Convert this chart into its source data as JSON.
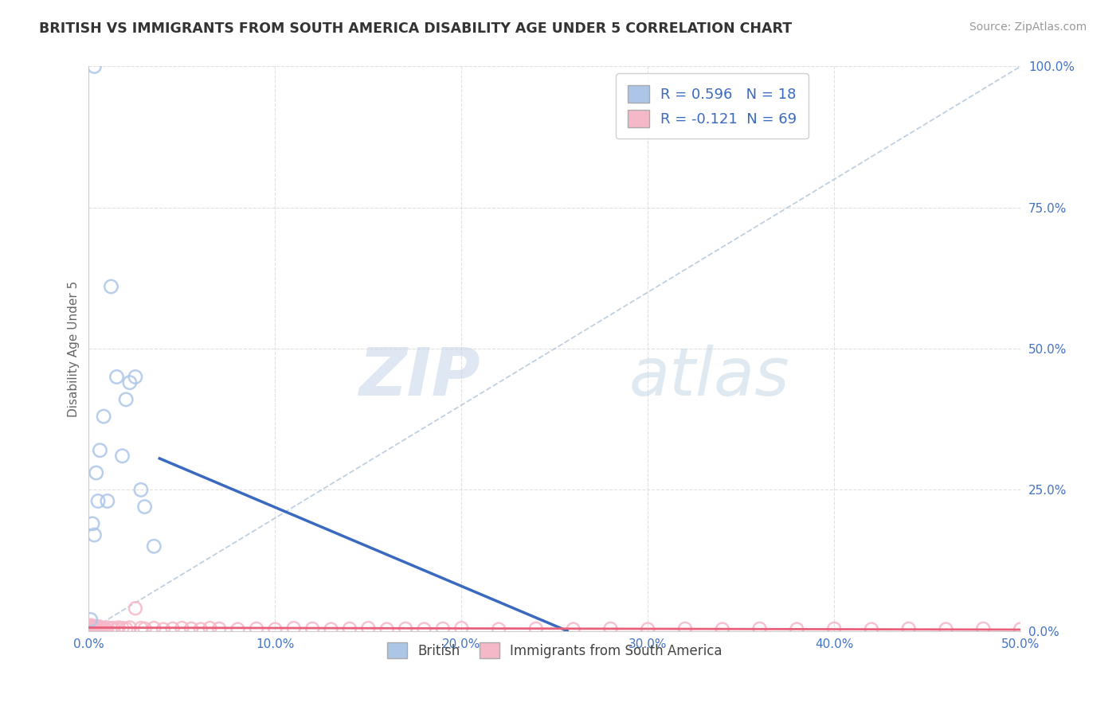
{
  "title": "BRITISH VS IMMIGRANTS FROM SOUTH AMERICA DISABILITY AGE UNDER 5 CORRELATION CHART",
  "source": "Source: ZipAtlas.com",
  "ylabel": "Disability Age Under 5",
  "british_r": 0.596,
  "british_n": 18,
  "sa_r": -0.121,
  "sa_n": 69,
  "british_color": "#adc6e8",
  "sa_color": "#f5b8c8",
  "british_line_color": "#3a6abf",
  "sa_line_color": "#e8607a",
  "identity_line_color": "#b0c4d8",
  "background_color": "#ffffff",
  "grid_color": "#e0e0e0",
  "title_color": "#333333",
  "legend_r_color": "#3a6abf",
  "axis_label_color": "#4472c4",
  "british_points_x": [
    0.001,
    0.002,
    0.003,
    0.004,
    0.005,
    0.006,
    0.008,
    0.01,
    0.012,
    0.015,
    0.018,
    0.02,
    0.022,
    0.025,
    0.028,
    0.03,
    0.035,
    0.003
  ],
  "british_points_y": [
    0.02,
    0.19,
    0.17,
    0.28,
    0.23,
    0.32,
    0.38,
    0.23,
    0.61,
    0.45,
    0.31,
    0.41,
    0.44,
    0.45,
    0.25,
    0.22,
    0.15,
    1.0
  ],
  "sa_points_x": [
    0.001,
    0.001,
    0.002,
    0.002,
    0.003,
    0.003,
    0.004,
    0.004,
    0.005,
    0.005,
    0.006,
    0.006,
    0.007,
    0.008,
    0.009,
    0.01,
    0.012,
    0.013,
    0.015,
    0.016,
    0.018,
    0.02,
    0.022,
    0.025,
    0.028,
    0.03,
    0.035,
    0.04,
    0.045,
    0.05,
    0.055,
    0.06,
    0.065,
    0.07,
    0.08,
    0.09,
    0.1,
    0.11,
    0.12,
    0.13,
    0.14,
    0.15,
    0.16,
    0.17,
    0.18,
    0.19,
    0.2,
    0.22,
    0.24,
    0.26,
    0.28,
    0.3,
    0.32,
    0.34,
    0.36,
    0.38,
    0.4,
    0.42,
    0.44,
    0.46,
    0.48,
    0.5,
    0.001,
    0.002,
    0.003,
    0.004,
    0.005,
    0.006,
    0.007
  ],
  "sa_points_y": [
    0.005,
    0.008,
    0.004,
    0.007,
    0.005,
    0.006,
    0.004,
    0.008,
    0.003,
    0.006,
    0.005,
    0.007,
    0.004,
    0.005,
    0.003,
    0.006,
    0.004,
    0.005,
    0.004,
    0.006,
    0.005,
    0.004,
    0.006,
    0.04,
    0.005,
    0.004,
    0.005,
    0.003,
    0.004,
    0.005,
    0.004,
    0.003,
    0.005,
    0.004,
    0.003,
    0.004,
    0.003,
    0.005,
    0.004,
    0.003,
    0.004,
    0.005,
    0.003,
    0.004,
    0.003,
    0.004,
    0.005,
    0.003,
    0.004,
    0.003,
    0.004,
    0.003,
    0.004,
    0.003,
    0.004,
    0.003,
    0.004,
    0.003,
    0.004,
    0.003,
    0.004,
    0.003,
    0.01,
    0.005,
    0.008,
    0.006,
    0.004,
    0.007,
    0.005
  ],
  "xlim": [
    0.0,
    0.5
  ],
  "ylim": [
    0.0,
    1.0
  ],
  "xticks": [
    0.0,
    0.1,
    0.2,
    0.3,
    0.4,
    0.5
  ],
  "yticks": [
    0.0,
    0.25,
    0.5,
    0.75,
    1.0
  ],
  "xtick_labels": [
    "0.0%",
    "10.0%",
    "20.0%",
    "30.0%",
    "40.0%",
    "50.0%"
  ],
  "ytick_labels": [
    "0.0%",
    "25.0%",
    "50.0%",
    "75.0%",
    "100.0%"
  ],
  "watermark_zip": "ZIP",
  "watermark_atlas": "atlas",
  "figsize": [
    14.06,
    8.92
  ],
  "dpi": 100
}
